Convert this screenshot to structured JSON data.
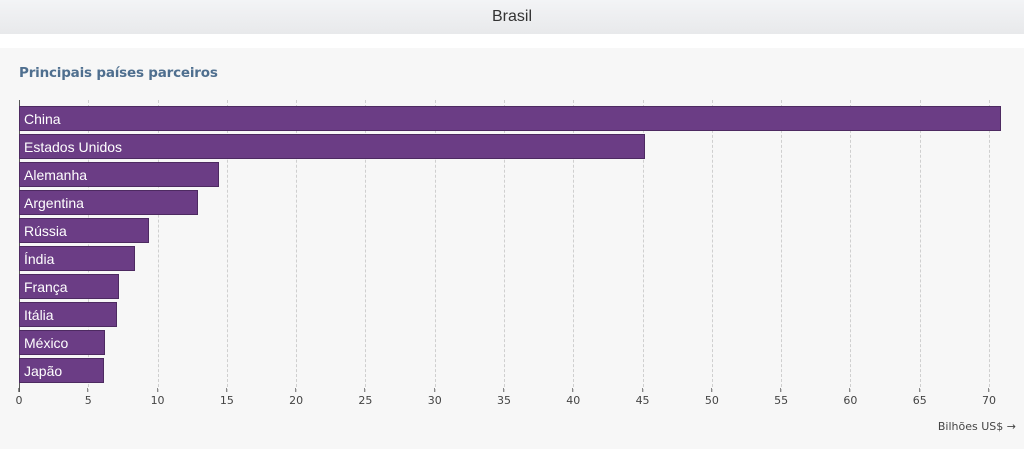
{
  "header": {
    "title": "Brasil"
  },
  "panel": {
    "title": "Principais países parceiros"
  },
  "colors": {
    "bar": "#6b3d85",
    "bar_border": "#4d2a61",
    "title": "#4f6f8f"
  },
  "chart_data": {
    "type": "bar",
    "orientation": "horizontal",
    "title": "Principais países parceiros",
    "xlabel": "Bilhões US$ →",
    "ylabel": "",
    "categories": [
      "China",
      "Estados Unidos",
      "Alemanha",
      "Argentina",
      "Rússia",
      "Índia",
      "França",
      "Itália",
      "México",
      "Japão"
    ],
    "values": [
      70.9,
      45.2,
      14.4,
      12.9,
      9.4,
      8.4,
      7.2,
      7.1,
      6.2,
      6.1
    ],
    "xlim": [
      0,
      71.5
    ],
    "xticks": [
      0,
      5,
      10,
      15,
      20,
      25,
      30,
      35,
      40,
      45,
      50,
      55,
      60,
      65,
      70
    ],
    "grid": true,
    "legend": null
  }
}
